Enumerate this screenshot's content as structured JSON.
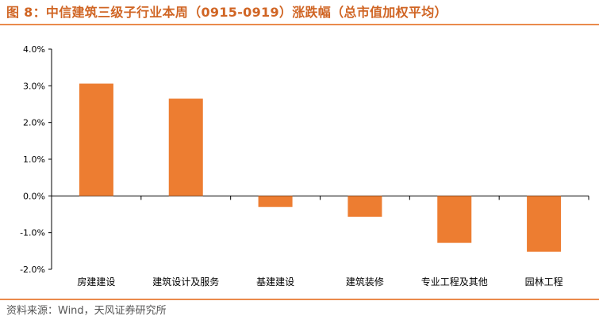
{
  "header": {
    "title": "图 8：中信建筑三级子行业本周（0915-0919）涨跌幅（总市值加权平均）"
  },
  "footer": {
    "source": "资料来源：Wind，天风证券研究所"
  },
  "colors": {
    "bar": "#ed7d31",
    "accent": "#d06524",
    "rule": "#ea8a4c"
  },
  "chart_data": {
    "type": "bar",
    "title": "",
    "xlabel": "",
    "ylabel": "",
    "categories": [
      "房建建设",
      "建筑设计及服务",
      "基建建设",
      "建筑装修",
      "专业工程及其他",
      "园林工程"
    ],
    "values": [
      3.06,
      2.65,
      -0.3,
      -0.57,
      -1.28,
      -1.52
    ],
    "ylim": [
      -2.0,
      4.0
    ],
    "yticks": [
      "-2.0%",
      "-1.0%",
      "0.0%",
      "1.0%",
      "2.0%",
      "3.0%",
      "4.0%"
    ],
    "grid": false,
    "legend": "none"
  }
}
